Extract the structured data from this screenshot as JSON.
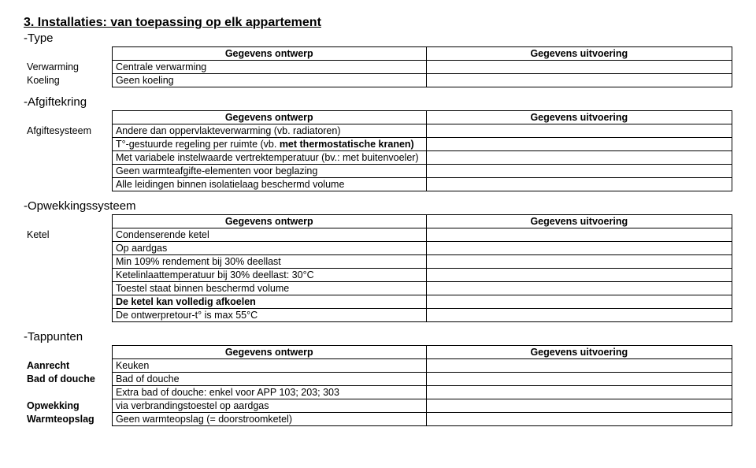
{
  "section": {
    "title": "3. Installaties: van toepassing op elk appartement"
  },
  "headers": {
    "ontwerp": "Gegevens ontwerp",
    "uitvoering": "Gegevens uitvoering"
  },
  "type": {
    "heading": "-Type",
    "rows": [
      {
        "label": "Verwarming",
        "desc": "Centrale verwarming"
      },
      {
        "label": "Koeling",
        "desc": "Geen koeling"
      }
    ]
  },
  "afgiftekring": {
    "heading": "-Afgiftekring",
    "label": "Afgiftesysteem",
    "rows": [
      "Andere dan oppervlakteverwarming (vb. radiatoren)",
      "T°-gestuurde regeling per ruimte (vb. met thermostatische kranen)",
      "Met variabele instelwaarde vertrektemperatuur (bv.: met buitenvoeler)",
      "Geen warmteafgifte-elementen voor beglazing",
      "Alle leidingen binnen isolatielaag beschermd volume"
    ],
    "bold_segment": "met thermostatische kranen)"
  },
  "opwekking": {
    "heading": "-Opwekkingssysteem",
    "label": "Ketel",
    "rows": [
      {
        "text": "Condenserende ketel",
        "bold": false
      },
      {
        "text": "Op aardgas",
        "bold": false
      },
      {
        "text": "Min 109% rendement bij 30% deellast",
        "bold": false
      },
      {
        "text": "Ketelinlaattemperatuur bij 30% deellast: 30°C",
        "bold": false
      },
      {
        "text": "Toestel staat binnen beschermd volume",
        "bold": false
      },
      {
        "text": "De ketel kan volledig afkoelen",
        "bold": true
      },
      {
        "text": "De ontwerpretour-t° is max 55°C",
        "bold": false
      }
    ]
  },
  "tappunten": {
    "heading": "-Tappunten",
    "rows": [
      {
        "label": "Aanrecht",
        "desc": "Keuken"
      },
      {
        "label": "Bad of douche",
        "desc": "Bad of douche"
      },
      {
        "label": "",
        "desc": "Extra bad of douche: enkel voor APP 103; 203; 303"
      },
      {
        "label": "Opwekking",
        "desc": "via verbrandingstoestel op aardgas"
      },
      {
        "label": "Warmteopslag",
        "desc": "Geen warmteopslag (= doorstroomketel)"
      }
    ]
  }
}
